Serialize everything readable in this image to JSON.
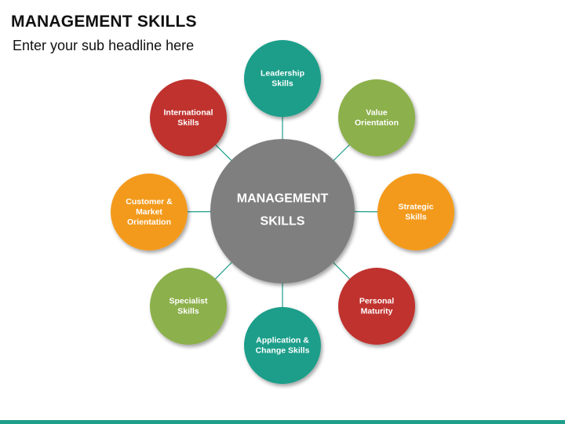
{
  "header": {
    "title": "MANAGEMENT SKILLS",
    "subtitle": "Enter your sub headline here"
  },
  "diagram": {
    "center": {
      "lines": [
        "MANAGEMENT",
        "SKILLS"
      ],
      "color": "#7f7f7f"
    },
    "connector_color": "#1f9e8a",
    "nodes": [
      {
        "id": "leadership",
        "lines": [
          "Leadership",
          "Skills"
        ],
        "color": "#1f9e8a"
      },
      {
        "id": "value",
        "lines": [
          "Value",
          "Orientation"
        ],
        "color": "#8cb04b"
      },
      {
        "id": "strategic",
        "lines": [
          "Strategic",
          "Skills"
        ],
        "color": "#f39a1f"
      },
      {
        "id": "personal",
        "lines": [
          "Personal",
          "Maturity"
        ],
        "color": "#c0332d"
      },
      {
        "id": "application",
        "lines": [
          "Application &",
          "Change Skills"
        ],
        "color": "#1f9e8a"
      },
      {
        "id": "specialist",
        "lines": [
          "Specialist",
          "Skills"
        ],
        "color": "#8cb04b"
      },
      {
        "id": "customer",
        "lines": [
          "Customer &",
          "Market",
          "Orientation"
        ],
        "color": "#f39a1f"
      },
      {
        "id": "international",
        "lines": [
          "International",
          "Skills"
        ],
        "color": "#c0332d"
      }
    ]
  },
  "footer": {
    "color": "#1f9e8a"
  }
}
